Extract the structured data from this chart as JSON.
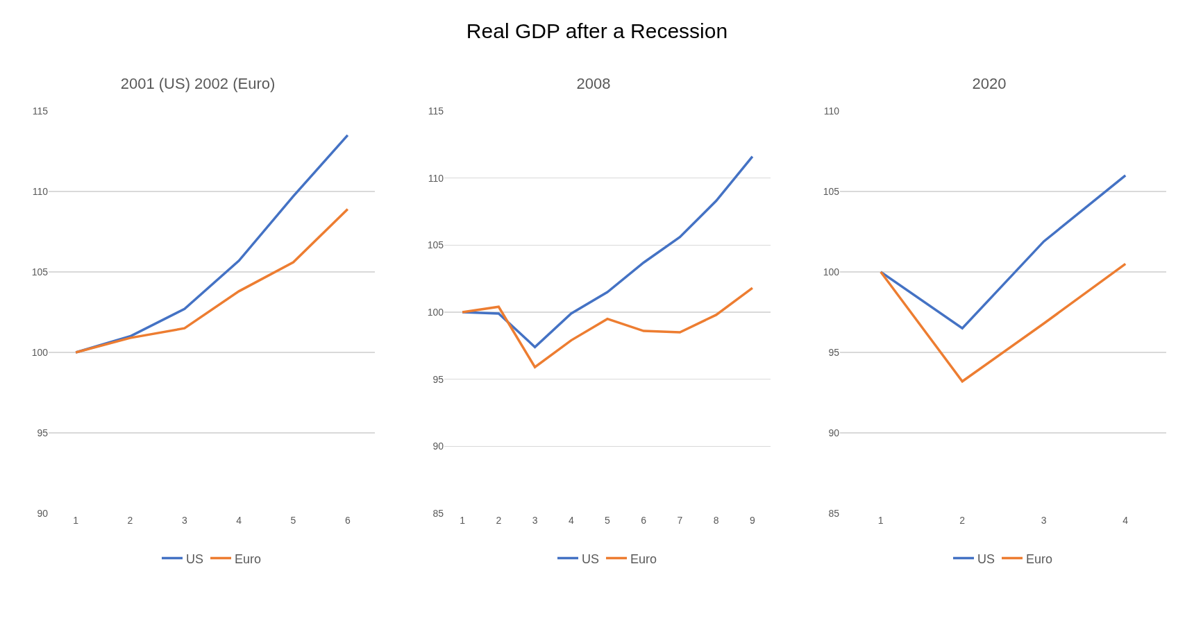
{
  "chart_data": [
    {
      "type": "other",
      "title": "Real GDP after a Recession"
    },
    {
      "type": "line",
      "title": "2001 (US) 2002 (Euro)",
      "categories": [
        "1",
        "2",
        "3",
        "4",
        "5",
        "6"
      ],
      "ylim": [
        90,
        115
      ],
      "yticks": [
        90,
        95,
        100,
        105,
        110,
        115
      ],
      "grid": "y",
      "legend": "bottom",
      "marker": "none",
      "line_style": "solid",
      "series": [
        {
          "name": "US",
          "color": "#4472c4",
          "values": [
            100,
            101.0,
            102.7,
            105.7,
            109.7,
            113.5
          ]
        },
        {
          "name": "Euro",
          "color": "#ed7d31",
          "values": [
            100,
            100.9,
            101.5,
            103.8,
            105.6,
            108.9
          ]
        }
      ]
    },
    {
      "type": "line",
      "title": "2008",
      "categories": [
        "1",
        "2",
        "3",
        "4",
        "5",
        "6",
        "7",
        "8",
        "9"
      ],
      "ylim": [
        85,
        115
      ],
      "yticks": [
        85,
        90,
        95,
        100,
        105,
        110,
        115
      ],
      "grid": "y",
      "legend": "bottom",
      "marker": "none",
      "line_style": "solid",
      "series": [
        {
          "name": "US",
          "color": "#4472c4",
          "values": [
            100,
            99.9,
            97.4,
            99.9,
            101.5,
            103.7,
            105.6,
            108.3,
            111.6
          ]
        },
        {
          "name": "Euro",
          "color": "#ed7d31",
          "values": [
            100,
            100.4,
            95.9,
            97.9,
            99.5,
            98.6,
            98.5,
            99.8,
            101.8
          ]
        }
      ]
    },
    {
      "type": "line",
      "title": "2020",
      "categories": [
        "1",
        "2",
        "3",
        "4"
      ],
      "ylim": [
        85,
        110
      ],
      "yticks": [
        85,
        90,
        95,
        100,
        105,
        110
      ],
      "grid": "y",
      "legend": "bottom",
      "marker": "none",
      "line_style": "solid",
      "series": [
        {
          "name": "US",
          "color": "#4472c4",
          "values": [
            100,
            96.5,
            101.9,
            106.0
          ]
        },
        {
          "name": "Euro",
          "color": "#ed7d31",
          "values": [
            100,
            93.2,
            96.8,
            100.5
          ]
        }
      ]
    }
  ]
}
